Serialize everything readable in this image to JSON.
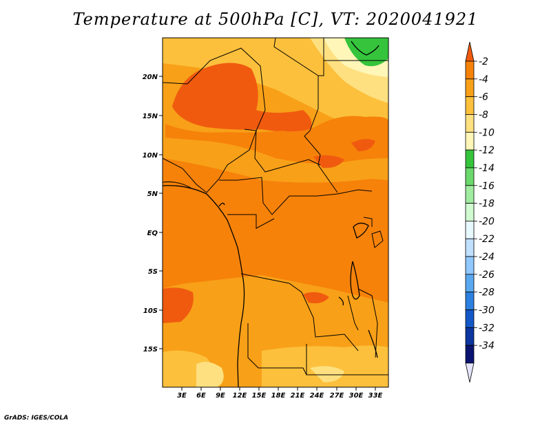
{
  "title": "Temperature at 500hPa [C], VT: 2020041921",
  "credit": "GrADS: IGES/COLA",
  "map": {
    "lat_labels": [
      "20N",
      "15N",
      "10N",
      "5N",
      "EQ",
      "5S",
      "10S",
      "15S"
    ],
    "lon_labels": [
      "3E",
      "6E",
      "9E",
      "12E",
      "15E",
      "18E",
      "21E",
      "24E",
      "27E",
      "30E",
      "33E"
    ]
  },
  "colorbar": {
    "labels": [
      "-2",
      "-4",
      "-6",
      "-8",
      "-10",
      "-12",
      "-14",
      "-16",
      "-18",
      "-20",
      "-22",
      "-24",
      "-26",
      "-28",
      "-30",
      "-32",
      "-34"
    ],
    "colors": [
      "#f05a0f",
      "#f6820a",
      "#f8a018",
      "#fcc03c",
      "#fee080",
      "#fff6b8",
      "#35c43c",
      "#6ad86a",
      "#a0eca0",
      "#d0fad0",
      "#e8f8ff",
      "#c0e0ff",
      "#90c8ff",
      "#5aa8f0",
      "#2c80e0",
      "#1458c8",
      "#0c36a0",
      "#0a1470",
      "#e4e4fc"
    ]
  }
}
